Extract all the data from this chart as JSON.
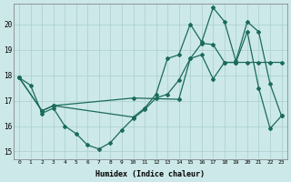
{
  "xlabel": "Humidex (Indice chaleur)",
  "ylabel": "",
  "background_color": "#cce8e8",
  "grid_color": "#aacece",
  "line_color": "#1a6b5a",
  "xlim": [
    -0.5,
    23.5
  ],
  "ylim": [
    14.7,
    20.8
  ],
  "yticks": [
    15,
    16,
    17,
    18,
    19,
    20
  ],
  "xticks": [
    0,
    1,
    2,
    3,
    4,
    5,
    6,
    7,
    8,
    9,
    10,
    11,
    12,
    13,
    14,
    15,
    16,
    17,
    18,
    19,
    20,
    21,
    22,
    23
  ],
  "line1_x": [
    0,
    1,
    2,
    3,
    4,
    5,
    6,
    7,
    8,
    9,
    10,
    11,
    12,
    13,
    14,
    15,
    16,
    17,
    18,
    19,
    20,
    21,
    22,
    23
  ],
  "line1_y": [
    17.9,
    17.6,
    16.5,
    16.7,
    16.0,
    15.7,
    15.25,
    15.1,
    15.35,
    15.85,
    16.3,
    16.65,
    17.1,
    17.25,
    17.8,
    18.65,
    18.8,
    17.85,
    18.5,
    18.5,
    19.7,
    17.5,
    15.9,
    16.4
  ],
  "line2_x": [
    0,
    2,
    3,
    10,
    14,
    15,
    16,
    17,
    18,
    19,
    20,
    21,
    22,
    23
  ],
  "line2_y": [
    17.9,
    16.6,
    16.8,
    17.1,
    17.05,
    18.65,
    19.25,
    19.2,
    18.5,
    18.5,
    18.5,
    18.5,
    18.5,
    18.5
  ],
  "line3_x": [
    0,
    2,
    3,
    10,
    11,
    12,
    13,
    14,
    15,
    16,
    17,
    18,
    19,
    20,
    21,
    22,
    23
  ],
  "line3_y": [
    17.9,
    16.6,
    16.8,
    16.35,
    16.7,
    17.25,
    18.65,
    18.8,
    20.0,
    19.3,
    20.65,
    20.1,
    18.55,
    20.1,
    19.7,
    17.65,
    16.4
  ]
}
